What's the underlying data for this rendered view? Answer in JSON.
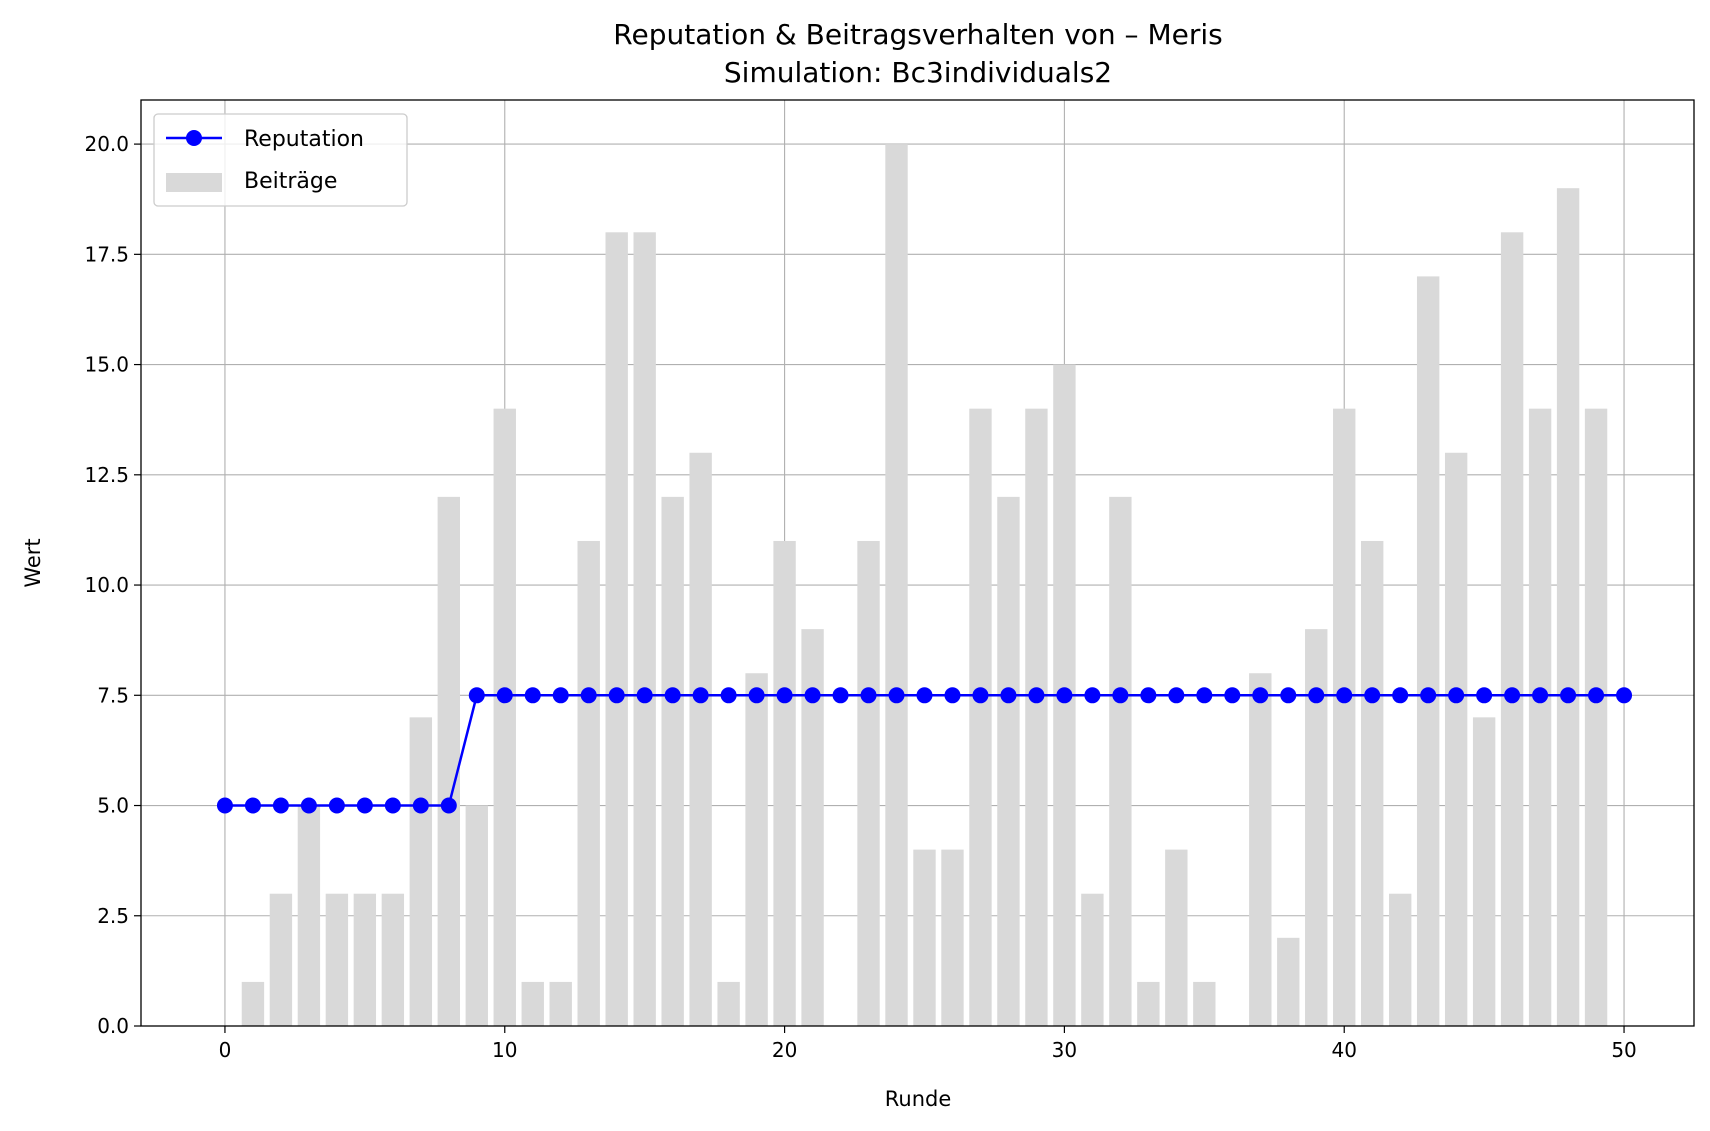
{
  "chart_data": {
    "type": "bar+line",
    "title": "Reputation & Beitragsverhalten von – Meris",
    "subtitle": "Simulation: Bc3individuals2",
    "xlabel": "Runde",
    "ylabel": "Wert",
    "xlim": [
      -3,
      52.5
    ],
    "ylim": [
      0,
      21
    ],
    "xticks": [
      "0",
      "10",
      "20",
      "30",
      "40",
      "50"
    ],
    "yticks": [
      "0.0",
      "2.5",
      "5.0",
      "7.5",
      "10.0",
      "12.5",
      "15.0",
      "17.5",
      "20.0"
    ],
    "grid": true,
    "legend_position": "top-left",
    "series": [
      {
        "name": "Reputation",
        "kind": "line",
        "marker": "circle",
        "color": "#0000ff",
        "x": [
          0,
          1,
          2,
          3,
          4,
          5,
          6,
          7,
          8,
          9,
          10,
          11,
          12,
          13,
          14,
          15,
          16,
          17,
          18,
          19,
          20,
          21,
          22,
          23,
          24,
          25,
          26,
          27,
          28,
          29,
          30,
          31,
          32,
          33,
          34,
          35,
          36,
          37,
          38,
          39,
          40,
          41,
          42,
          43,
          44,
          45,
          46,
          47,
          48,
          49,
          50
        ],
        "values": [
          5,
          5,
          5,
          5,
          5,
          5,
          5,
          5,
          5,
          7.5,
          7.5,
          7.5,
          7.5,
          7.5,
          7.5,
          7.5,
          7.5,
          7.5,
          7.5,
          7.5,
          7.5,
          7.5,
          7.5,
          7.5,
          7.5,
          7.5,
          7.5,
          7.5,
          7.5,
          7.5,
          7.5,
          7.5,
          7.5,
          7.5,
          7.5,
          7.5,
          7.5,
          7.5,
          7.5,
          7.5,
          7.5,
          7.5,
          7.5,
          7.5,
          7.5,
          7.5,
          7.5,
          7.5,
          7.5,
          7.5,
          7.5
        ]
      },
      {
        "name": "Beiträge",
        "kind": "bar",
        "color": "#d9d9d9",
        "x": [
          1,
          2,
          3,
          4,
          5,
          6,
          7,
          8,
          9,
          10,
          11,
          12,
          13,
          14,
          15,
          16,
          17,
          18,
          19,
          20,
          21,
          22,
          23,
          24,
          25,
          26,
          27,
          28,
          29,
          30,
          31,
          32,
          33,
          34,
          35,
          36,
          37,
          38,
          39,
          40,
          41,
          42,
          43,
          44,
          45,
          46,
          47,
          48,
          49
        ],
        "values": [
          1,
          3,
          5,
          3,
          3,
          3,
          7,
          12,
          5,
          14,
          1,
          1,
          11,
          18,
          18,
          12,
          13,
          1,
          8,
          11,
          9,
          0,
          11,
          20,
          4,
          4,
          14,
          12,
          14,
          15,
          3,
          12,
          1,
          4,
          1,
          0,
          8,
          2,
          9,
          14,
          11,
          3,
          17,
          13,
          7,
          18,
          14,
          19,
          14
        ]
      }
    ]
  }
}
